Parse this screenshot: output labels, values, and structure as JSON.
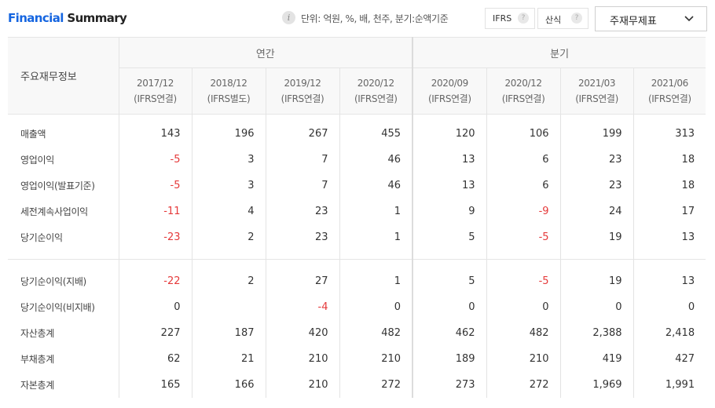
{
  "header": {
    "title_part1": "Financial",
    "title_part2": "Summary",
    "info_icon": "i",
    "unit_text": "단위: 억원, %, 배, 천주, 분기:순액기준",
    "ifrs_label": "IFRS",
    "calc_label": "산식",
    "help_glyph": "?",
    "select_value": "주재무제표"
  },
  "table": {
    "label_header": "주요재무정보",
    "group_annual": "연간",
    "group_quarterly": "분기",
    "periods": [
      {
        "date": "2017/12",
        "basis": "(IFRS연결)"
      },
      {
        "date": "2018/12",
        "basis": "(IFRS별도)"
      },
      {
        "date": "2019/12",
        "basis": "(IFRS연결)"
      },
      {
        "date": "2020/12",
        "basis": "(IFRS연결)"
      },
      {
        "date": "2020/09",
        "basis": "(IFRS연결)"
      },
      {
        "date": "2020/12",
        "basis": "(IFRS연결)"
      },
      {
        "date": "2021/03",
        "basis": "(IFRS연결)"
      },
      {
        "date": "2021/06",
        "basis": "(IFRS연결)"
      }
    ],
    "rows": [
      {
        "label": "매출액",
        "values": [
          "143",
          "196",
          "267",
          "455",
          "120",
          "106",
          "199",
          "313"
        ]
      },
      {
        "label": "영업이익",
        "values": [
          "-5",
          "3",
          "7",
          "46",
          "13",
          "6",
          "23",
          "18"
        ]
      },
      {
        "label": "영업이익(발표기준)",
        "values": [
          "-5",
          "3",
          "7",
          "46",
          "13",
          "6",
          "23",
          "18"
        ]
      },
      {
        "label": "세전계속사업이익",
        "values": [
          "-11",
          "4",
          "23",
          "1",
          "9",
          "-9",
          "24",
          "17"
        ]
      },
      {
        "label": "당기순이익",
        "values": [
          "-23",
          "2",
          "23",
          "1",
          "5",
          "-5",
          "19",
          "13"
        ]
      },
      {
        "label": "당기순이익(지배)",
        "values": [
          "-22",
          "2",
          "27",
          "1",
          "5",
          "-5",
          "19",
          "13"
        ]
      },
      {
        "label": "당기순이익(비지배)",
        "values": [
          "0",
          "",
          "-4",
          "0",
          "0",
          "0",
          "0",
          "0"
        ]
      },
      {
        "label": "자산총계",
        "values": [
          "227",
          "187",
          "420",
          "482",
          "462",
          "482",
          "2,388",
          "2,418"
        ]
      },
      {
        "label": "부채총계",
        "values": [
          "62",
          "21",
          "210",
          "210",
          "189",
          "210",
          "419",
          "427"
        ]
      },
      {
        "label": "자본총계",
        "values": [
          "165",
          "166",
          "210",
          "272",
          "273",
          "272",
          "1,969",
          "1,991"
        ]
      }
    ]
  },
  "colors": {
    "brand_blue": "#1565e0",
    "negative": "#e5393a"
  },
  "icons": {
    "info": "info-icon",
    "help": "question-icon",
    "dropdown": "chevron-down-icon"
  }
}
